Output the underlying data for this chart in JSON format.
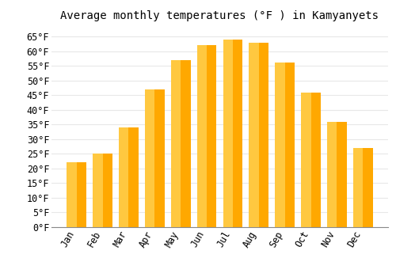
{
  "title": "Average monthly temperatures (°F ) in Kamyanyets",
  "months": [
    "Jan",
    "Feb",
    "Mar",
    "Apr",
    "May",
    "Jun",
    "Jul",
    "Aug",
    "Sep",
    "Oct",
    "Nov",
    "Dec"
  ],
  "values": [
    22,
    25,
    34,
    47,
    57,
    62,
    64,
    63,
    56,
    46,
    36,
    27
  ],
  "bar_color": "#FFA800",
  "bar_color2": "#FFB800",
  "background_color": "#FFFFFF",
  "grid_color": "#E8E8E8",
  "ylim": [
    0,
    68
  ],
  "yticks": [
    0,
    5,
    10,
    15,
    20,
    25,
    30,
    35,
    40,
    45,
    50,
    55,
    60,
    65
  ],
  "title_fontsize": 10,
  "tick_fontsize": 8.5,
  "tick_font": "monospace"
}
